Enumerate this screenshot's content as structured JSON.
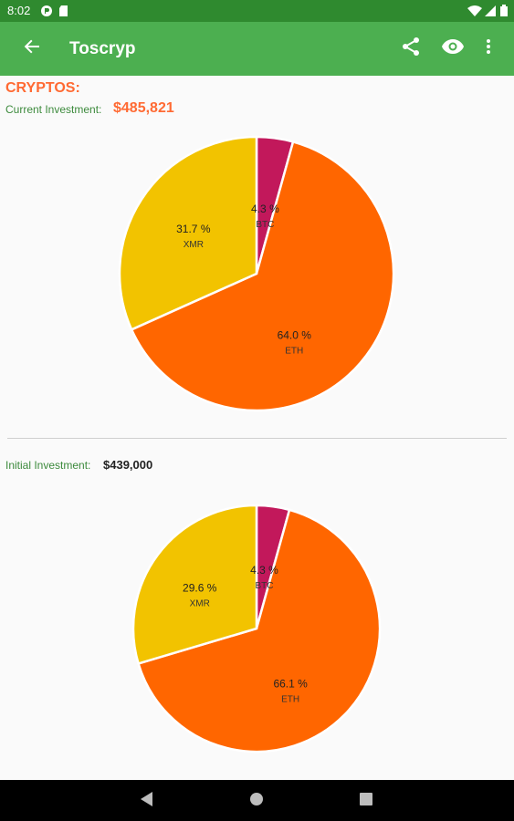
{
  "status_bar": {
    "time": "8:02"
  },
  "app_bar": {
    "title": "Toscryp"
  },
  "section": {
    "title": "CRYPTOS:"
  },
  "current": {
    "label": "Current Investment:",
    "value": "$485,821"
  },
  "initial": {
    "label": "Initial Investment:",
    "value": "$439,000"
  },
  "colors": {
    "btc": "#c2185b",
    "eth": "#ff6600",
    "xmr": "#f2c300",
    "app_bar": "#4caf50",
    "status_bar": "#2f8a2f",
    "accent": "#ff6a33",
    "label_green": "#3c8a3c"
  },
  "chart_data": [
    {
      "type": "pie",
      "categories": [
        "BTC",
        "ETH",
        "XMR"
      ],
      "values": [
        4.3,
        64.0,
        31.7
      ],
      "labels": [
        "4.3 %",
        "64.0 %",
        "31.7 %"
      ]
    },
    {
      "type": "pie",
      "categories": [
        "BTC",
        "ETH",
        "XMR"
      ],
      "values": [
        4.3,
        66.1,
        29.6
      ],
      "labels": [
        "4.3 %",
        "66.1 %",
        "29.6 %"
      ]
    }
  ]
}
